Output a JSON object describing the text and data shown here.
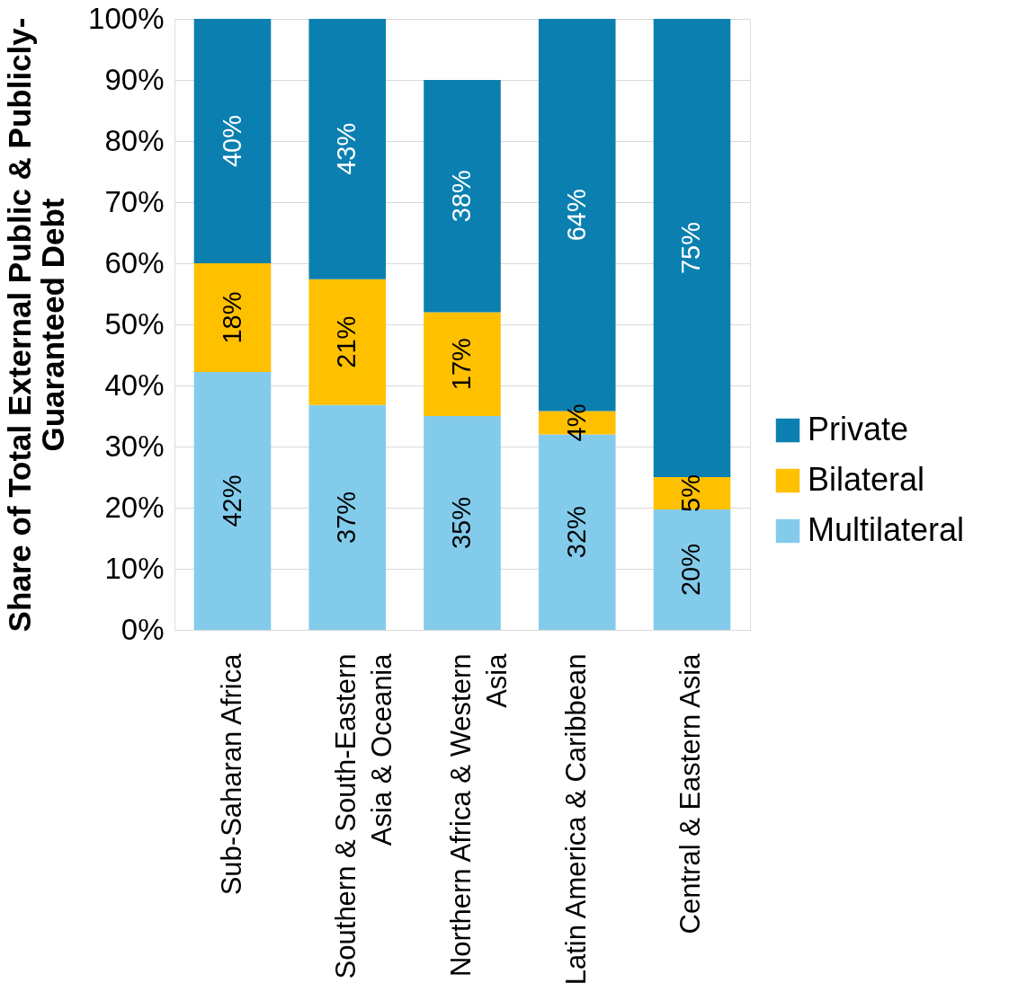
{
  "chart_data": {
    "type": "bar",
    "stacked": true,
    "ylabel": "Share of Total External Public & Publicly-Guaranteed Debt",
    "categories": [
      "Sub-Saharan Africa",
      "Southern & South-Eastern Asia & Oceania",
      "Northern Africa & Western Asia",
      "Latin America & Caribbean",
      "Central & Eastern Asia"
    ],
    "series": [
      {
        "name": "Multilateral",
        "color": "#83cbeb",
        "values": [
          42.2,
          36.8,
          35,
          32,
          19.7
        ],
        "value_labels": [
          "42%",
          "37%",
          "35%",
          "32%",
          "20%"
        ]
      },
      {
        "name": "Bilateral",
        "color": "#ffc000",
        "values": [
          17.8,
          20.6,
          17,
          3.8,
          5.3
        ],
        "value_labels": [
          "18%",
          "21%",
          "17%",
          "4%",
          "5%"
        ]
      },
      {
        "name": "Private",
        "color": "#0b80b0",
        "values": [
          40,
          42.6,
          38,
          64.2,
          75
        ],
        "value_labels": [
          "40%",
          "43%",
          "38%",
          "64%",
          "75%"
        ]
      }
    ],
    "ylim": [
      0,
      100
    ],
    "yticks": [
      {
        "value": 0,
        "label": "0%"
      },
      {
        "value": 10,
        "label": "10%"
      },
      {
        "value": 20,
        "label": "20%"
      },
      {
        "value": 30,
        "label": "30%"
      },
      {
        "value": 40,
        "label": "40%"
      },
      {
        "value": 50,
        "label": "50%"
      },
      {
        "value": 60,
        "label": "60%"
      },
      {
        "value": 70,
        "label": "70%"
      },
      {
        "value": 80,
        "label": "80%"
      },
      {
        "value": 90,
        "label": "90%"
      },
      {
        "value": 100,
        "label": "100%"
      }
    ],
    "grid": "y",
    "legend": "right"
  }
}
